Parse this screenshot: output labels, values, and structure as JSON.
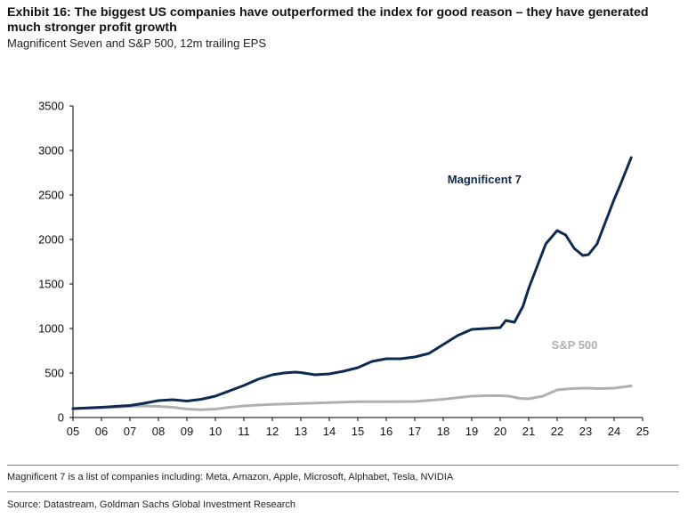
{
  "title": "Exhibit 16: The biggest US companies have outperformed the index for good reason – they have generated much stronger profit growth",
  "subtitle": "Magnificent Seven and S&P 500, 12m trailing EPS",
  "note": "Magnificent 7 is a list of companies including: Meta, Amazon, Apple, Microsoft, Alphabet, Tesla, NVIDIA",
  "source": "Source: Datastream, Goldman Sachs Global Investment Research",
  "chart_data": {
    "type": "line",
    "title": "Magnificent Seven and S&P 500, 12m trailing EPS",
    "xlabel": "",
    "ylabel": "",
    "xlim": [
      2005,
      2025
    ],
    "ylim": [
      0,
      3500
    ],
    "yticks": [
      0,
      500,
      1000,
      1500,
      2000,
      2500,
      3000,
      3500
    ],
    "xtick_labels": [
      "05",
      "06",
      "07",
      "08",
      "09",
      "10",
      "11",
      "12",
      "13",
      "14",
      "15",
      "16",
      "17",
      "18",
      "19",
      "20",
      "21",
      "22",
      "23",
      "24",
      "25"
    ],
    "grid": false,
    "series": [
      {
        "name": "Magnificent 7",
        "color": "#0d2b52",
        "x": [
          2005.0,
          2006.0,
          2007.0,
          2007.5,
          2008.0,
          2008.5,
          2009.0,
          2009.5,
          2010.0,
          2010.5,
          2011.0,
          2011.5,
          2012.0,
          2012.4,
          2012.8,
          2013.0,
          2013.5,
          2014.0,
          2014.5,
          2015.0,
          2015.5,
          2016.0,
          2016.5,
          2017.0,
          2017.5,
          2018.0,
          2018.5,
          2019.0,
          2019.5,
          2020.0,
          2020.2,
          2020.5,
          2020.8,
          2021.0,
          2021.3,
          2021.6,
          2022.0,
          2022.3,
          2022.6,
          2022.9,
          2023.1,
          2023.4,
          2023.7,
          2024.0,
          2024.2,
          2024.4,
          2024.6
        ],
        "values": [
          100,
          115,
          135,
          160,
          190,
          200,
          185,
          205,
          240,
          300,
          360,
          430,
          480,
          500,
          510,
          505,
          480,
          490,
          520,
          560,
          630,
          660,
          660,
          680,
          720,
          820,
          920,
          990,
          1000,
          1010,
          1090,
          1070,
          1250,
          1450,
          1700,
          1950,
          2100,
          2050,
          1900,
          1820,
          1830,
          1950,
          2200,
          2450,
          2600,
          2760,
          2920
        ]
      },
      {
        "name": "S&P 500",
        "color": "#b0b0b0",
        "x": [
          2005.0,
          2006.0,
          2007.0,
          2007.5,
          2008.0,
          2008.5,
          2009.0,
          2009.5,
          2010.0,
          2010.5,
          2011.0,
          2011.5,
          2012.0,
          2013.0,
          2014.0,
          2015.0,
          2016.0,
          2017.0,
          2018.0,
          2019.0,
          2019.5,
          2020.0,
          2020.3,
          2020.7,
          2021.0,
          2021.5,
          2022.0,
          2022.5,
          2023.0,
          2023.5,
          2024.0,
          2024.6
        ],
        "values": [
          100,
          110,
          125,
          130,
          125,
          115,
          95,
          88,
          95,
          115,
          130,
          140,
          148,
          158,
          168,
          178,
          178,
          180,
          205,
          240,
          245,
          245,
          240,
          215,
          210,
          240,
          310,
          325,
          330,
          325,
          330,
          355
        ]
      }
    ],
    "annotations": [
      {
        "text": "Magnificent 7",
        "series": "Magnificent 7"
      },
      {
        "text": "S&P 500",
        "series": "S&P 500"
      }
    ]
  }
}
